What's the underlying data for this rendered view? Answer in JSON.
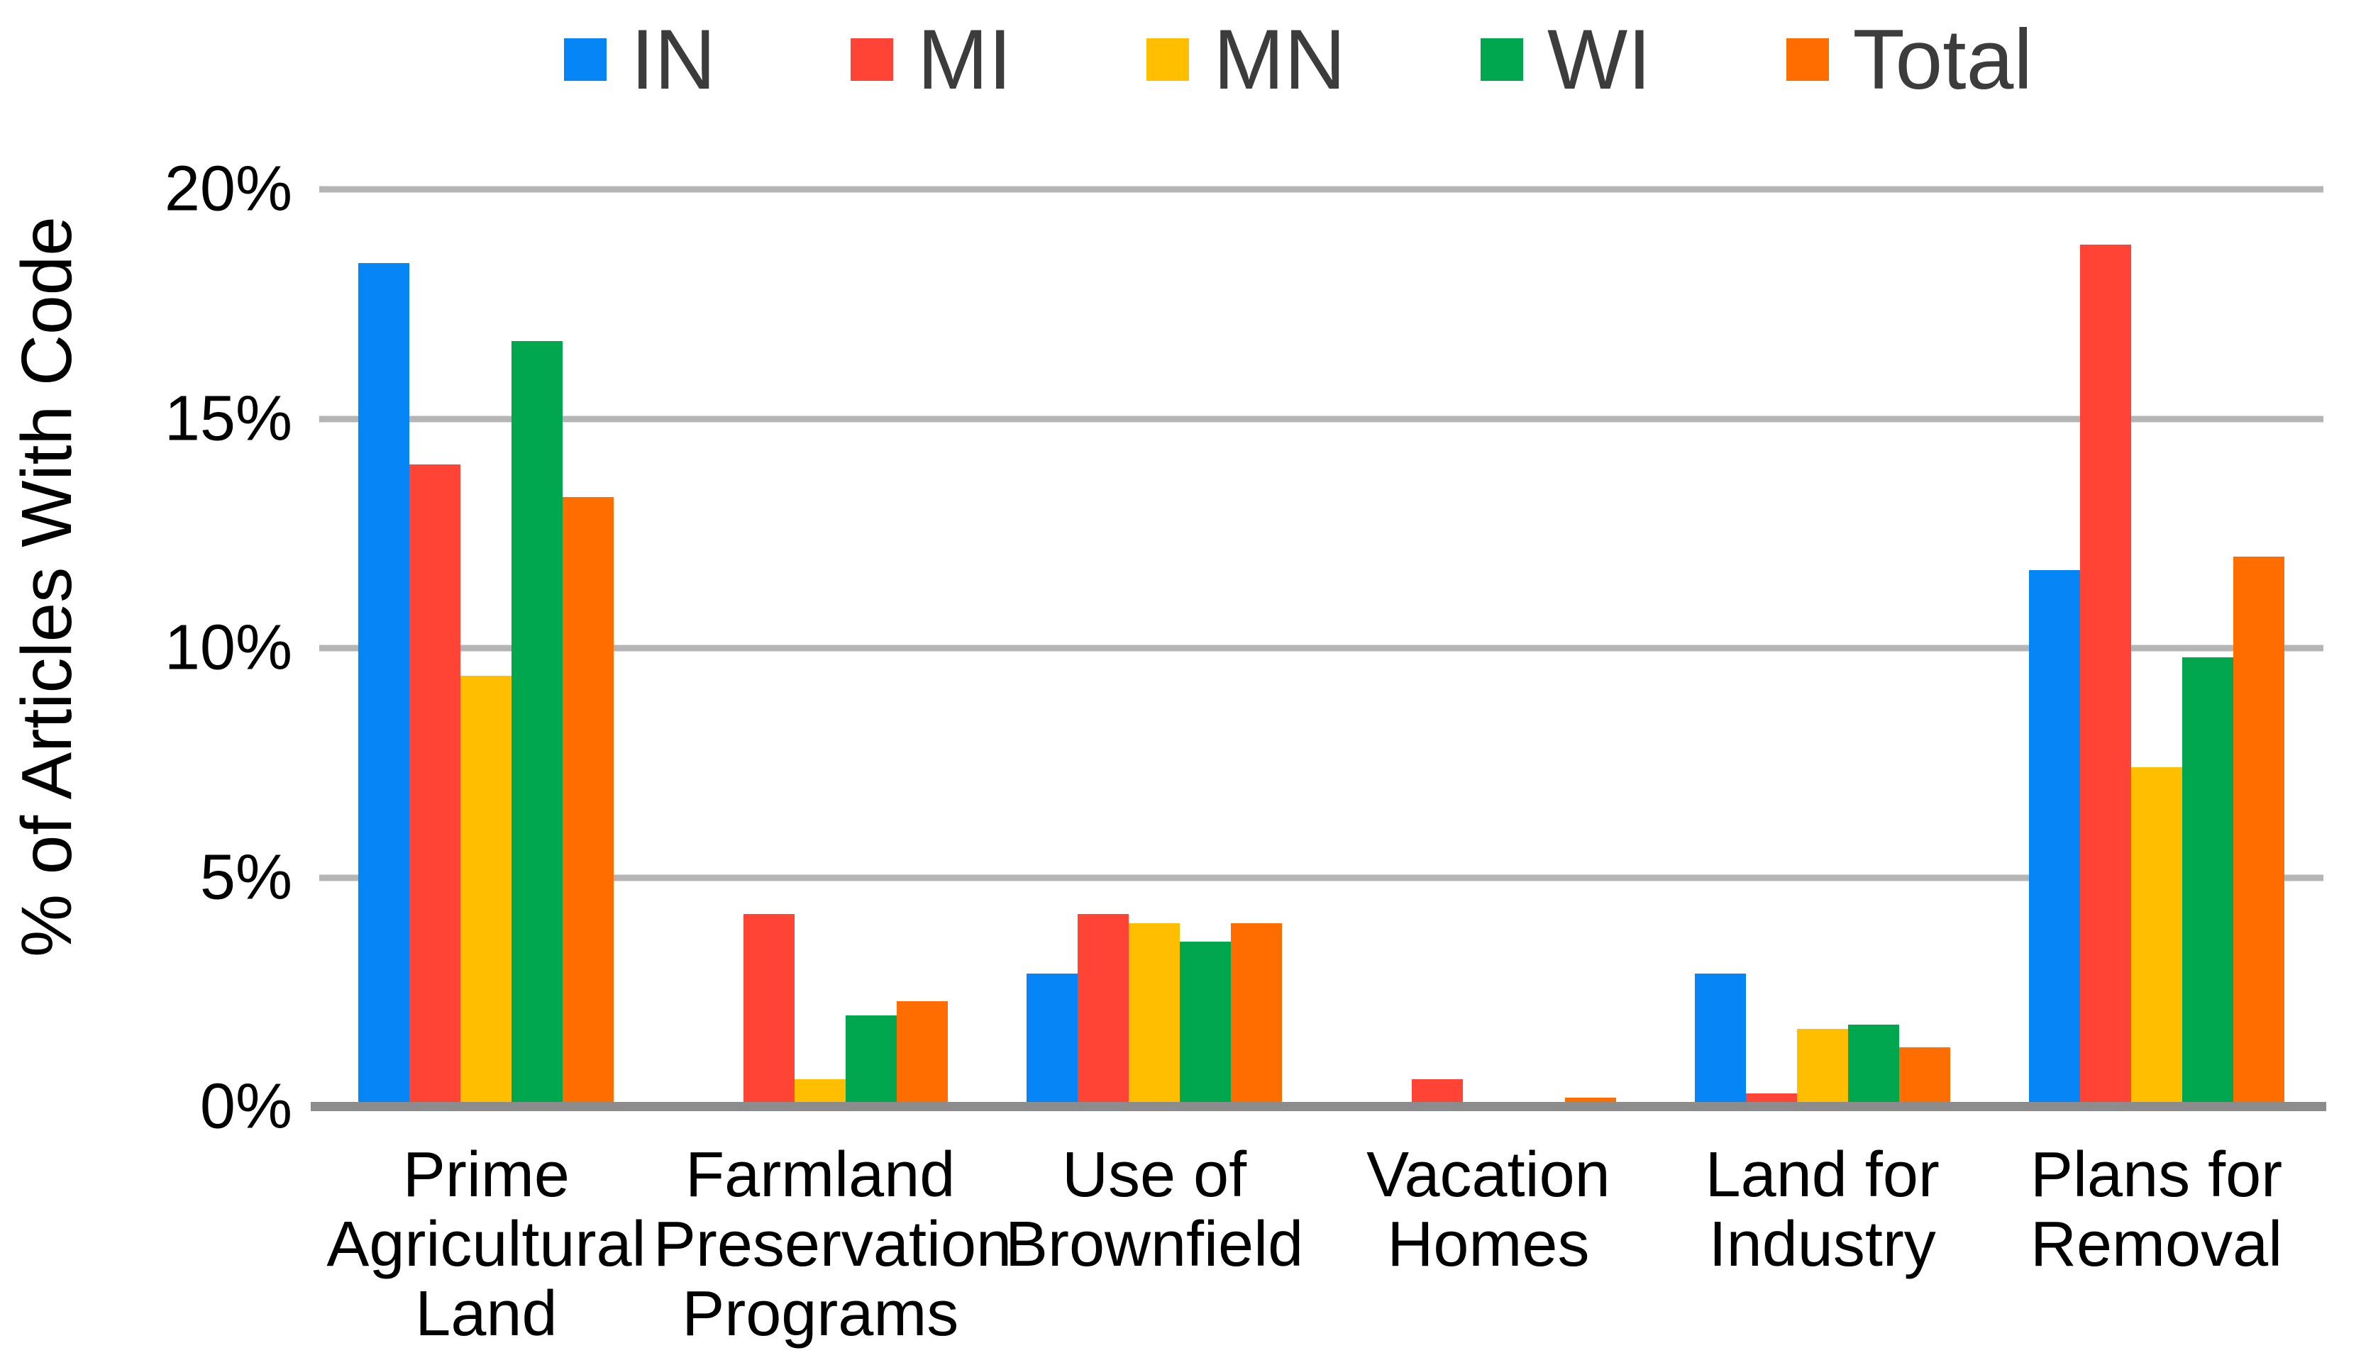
{
  "legend_position": "top",
  "chart_data": {
    "type": "bar",
    "title": "",
    "xlabel": "",
    "ylabel": "% of Articles With Code",
    "ylim": [
      0,
      20
    ],
    "grid": true,
    "legend_position": "top",
    "y_ticks": [
      "20%",
      "15%",
      "10%",
      "5%",
      "0%"
    ],
    "categories": [
      "Prime Agricultural Land",
      "Farmland Preservation Programs",
      "Use of Brownfield",
      "Vacation Homes",
      "Land for Industry",
      "Plans for Removal"
    ],
    "category_lines": [
      [
        "Prime",
        "Agricultural",
        "Land"
      ],
      [
        "Farmland",
        "Preservation",
        "Programs"
      ],
      [
        "Use of",
        "Brownfield"
      ],
      [
        "Vacation",
        "Homes"
      ],
      [
        "Land for",
        "Industry"
      ],
      [
        "Plans for",
        "Removal"
      ]
    ],
    "series": [
      {
        "name": "IN",
        "color": "#0685F6",
        "values": [
          18.4,
          0,
          2.9,
          0,
          2.9,
          11.7
        ]
      },
      {
        "name": "MI",
        "color": "#FF4335",
        "values": [
          14.0,
          4.2,
          4.2,
          0.6,
          0.3,
          18.8
        ]
      },
      {
        "name": "MN",
        "color": "#FFBF00",
        "values": [
          9.4,
          0.6,
          4.0,
          0,
          1.7,
          7.4
        ]
      },
      {
        "name": "WI",
        "color": "#00A74F",
        "values": [
          16.7,
          2.0,
          3.6,
          0,
          1.8,
          9.8
        ]
      },
      {
        "name": "Total",
        "color": "#FF6D00",
        "values": [
          13.3,
          2.3,
          4.0,
          0.2,
          1.3,
          12.0
        ]
      }
    ]
  },
  "colors": {
    "gridline": "#B5B5B5",
    "axis_line": "#8C8C8C",
    "legend_text": "#3C3C3C",
    "axis_text": "#000000"
  }
}
